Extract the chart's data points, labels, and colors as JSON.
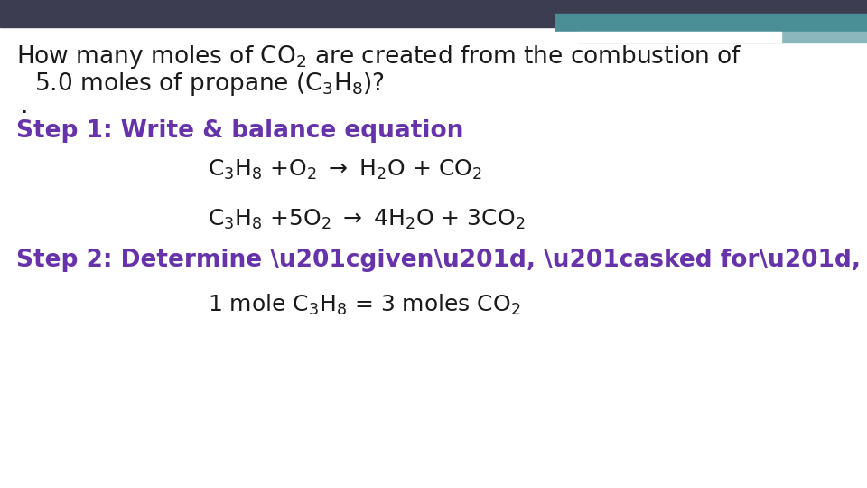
{
  "bg_color": "#ffffff",
  "header_color": "#3d3d52",
  "teal_bar1_color": "#4a8f95",
  "teal_bar2_color": "#8ab8bc",
  "purple_color": "#6633aa",
  "black_color": "#1a1a1a",
  "fs_title": 19,
  "fs_eq": 18,
  "fs_step": 19,
  "fs_mole": 18
}
